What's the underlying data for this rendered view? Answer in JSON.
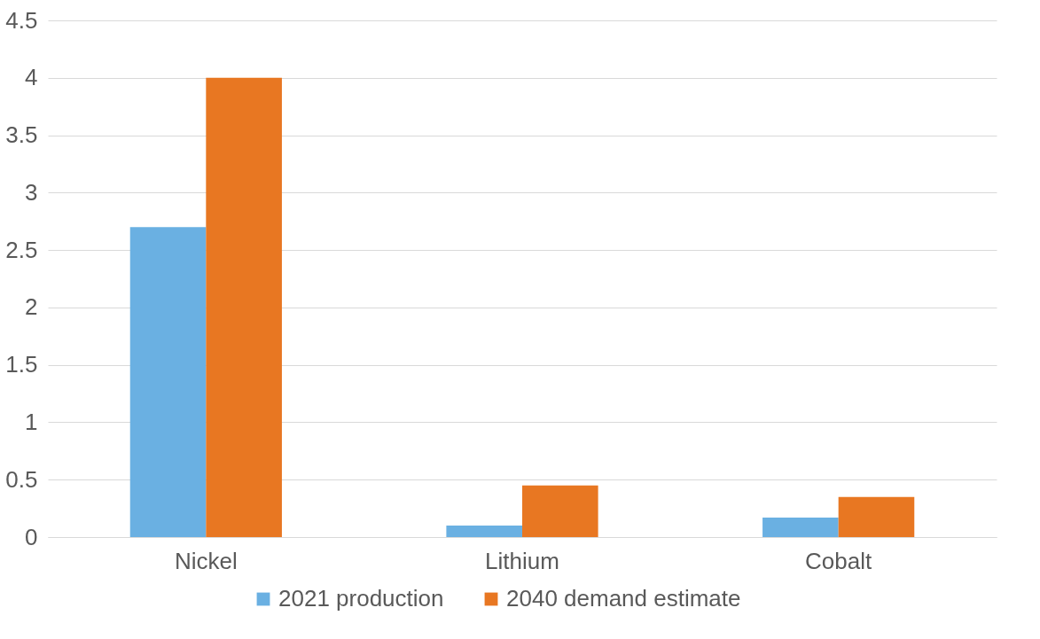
{
  "chart_data": {
    "type": "bar",
    "categories": [
      "Nickel",
      "Lithium",
      "Cobalt"
    ],
    "series": [
      {
        "name": "2021 production",
        "color": "#6ab0e2",
        "values": [
          2.7,
          0.1,
          0.17
        ]
      },
      {
        "name": "2040 demand estimate",
        "color": "#e87722",
        "values": [
          4.0,
          0.45,
          0.35
        ]
      }
    ],
    "ylim": [
      0,
      4.5
    ],
    "yticks": [
      0,
      0.5,
      1,
      1.5,
      2,
      2.5,
      3,
      3.5,
      4,
      4.5
    ],
    "grid": "y",
    "legend": "bottom"
  }
}
